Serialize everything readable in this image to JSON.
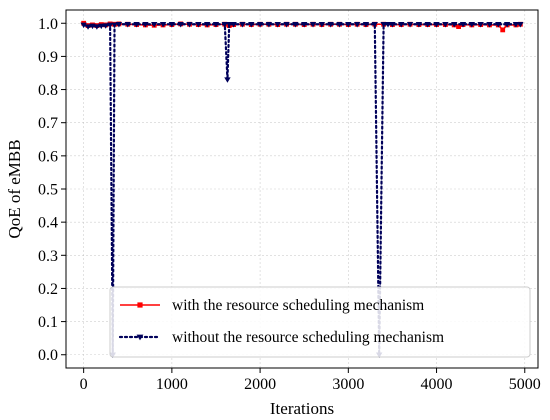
{
  "chart_data": {
    "type": "line",
    "xlabel": "Iterations",
    "ylabel": "QoE of eMBB",
    "xlim": [
      -200,
      5150
    ],
    "ylim": [
      -0.04,
      1.04
    ],
    "xticks": [
      0,
      1000,
      2000,
      3000,
      4000,
      5000
    ],
    "xtick_labels": [
      "0",
      "1000",
      "2000",
      "3000",
      "4000",
      "5000"
    ],
    "yticks": [
      0.0,
      0.1,
      0.2,
      0.3,
      0.4,
      0.5,
      0.6,
      0.7,
      0.8,
      0.9,
      1.0
    ],
    "ytick_labels": [
      "0.0",
      "0.1",
      "0.2",
      "0.3",
      "0.4",
      "0.5",
      "0.6",
      "0.7",
      "0.8",
      "0.9",
      "1.0"
    ],
    "grid": true,
    "legend_position": "lower-right",
    "series": [
      {
        "name": "with the resource scheduling mechanism",
        "color": "#ff0000",
        "line_style": "solid",
        "marker": "square",
        "x": [
          0,
          50,
          100,
          150,
          200,
          250,
          300,
          350,
          400,
          500,
          600,
          700,
          800,
          900,
          1000,
          1100,
          1200,
          1300,
          1400,
          1500,
          1600,
          1650,
          1700,
          1800,
          1900,
          2000,
          2100,
          2200,
          2300,
          2400,
          2500,
          2600,
          2700,
          2800,
          2900,
          3000,
          3100,
          3200,
          3300,
          3400,
          3500,
          3600,
          3700,
          3800,
          3900,
          4000,
          4100,
          4200,
          4250,
          4300,
          4400,
          4500,
          4600,
          4700,
          4750,
          4800,
          4900,
          4950
        ],
        "y": [
          1.0,
          0.993,
          0.995,
          0.993,
          0.996,
          0.995,
          0.998,
          0.997,
          0.998,
          0.997,
          0.996,
          0.995,
          0.994,
          0.995,
          0.996,
          0.998,
          0.997,
          0.996,
          0.995,
          0.996,
          0.997,
          0.993,
          0.996,
          0.997,
          0.996,
          0.997,
          0.997,
          0.996,
          0.997,
          0.997,
          0.996,
          0.997,
          0.996,
          0.997,
          0.997,
          0.996,
          0.997,
          0.996,
          0.997,
          0.997,
          0.996,
          0.996,
          0.997,
          0.996,
          0.996,
          0.996,
          0.996,
          0.995,
          0.99,
          0.996,
          0.995,
          0.996,
          0.995,
          0.995,
          0.98,
          0.995,
          0.995,
          0.997
        ]
      },
      {
        "name": "without the resource scheduling mechanism",
        "color": "#00005a",
        "line_style": "dotted",
        "marker": "triangle-down",
        "x": [
          0,
          50,
          100,
          150,
          200,
          250,
          300,
          330,
          350,
          400,
          500,
          600,
          700,
          800,
          900,
          1000,
          1100,
          1200,
          1300,
          1400,
          1500,
          1600,
          1630,
          1650,
          1700,
          1800,
          1900,
          2000,
          2100,
          2200,
          2300,
          2400,
          2500,
          2600,
          2700,
          2800,
          2900,
          3000,
          3100,
          3200,
          3300,
          3350,
          3400,
          3450,
          3500,
          3600,
          3700,
          3800,
          3900,
          4000,
          4100,
          4200,
          4300,
          4400,
          4500,
          4600,
          4700,
          4800,
          4900,
          4950
        ],
        "y": [
          0.995,
          0.99,
          0.992,
          0.99,
          0.992,
          0.993,
          0.995,
          0.0,
          0.995,
          0.997,
          0.997,
          0.997,
          0.997,
          0.997,
          0.997,
          0.997,
          0.997,
          0.997,
          0.997,
          0.997,
          0.997,
          0.997,
          0.83,
          0.997,
          0.997,
          0.997,
          0.997,
          0.997,
          0.997,
          0.997,
          0.997,
          0.997,
          0.997,
          0.997,
          0.997,
          0.997,
          0.997,
          0.997,
          0.997,
          0.997,
          0.997,
          0.0,
          0.997,
          0.997,
          0.997,
          0.997,
          0.997,
          0.997,
          0.997,
          0.997,
          0.997,
          0.997,
          0.997,
          0.997,
          0.997,
          0.997,
          0.997,
          0.997,
          0.997,
          0.997
        ]
      }
    ]
  }
}
